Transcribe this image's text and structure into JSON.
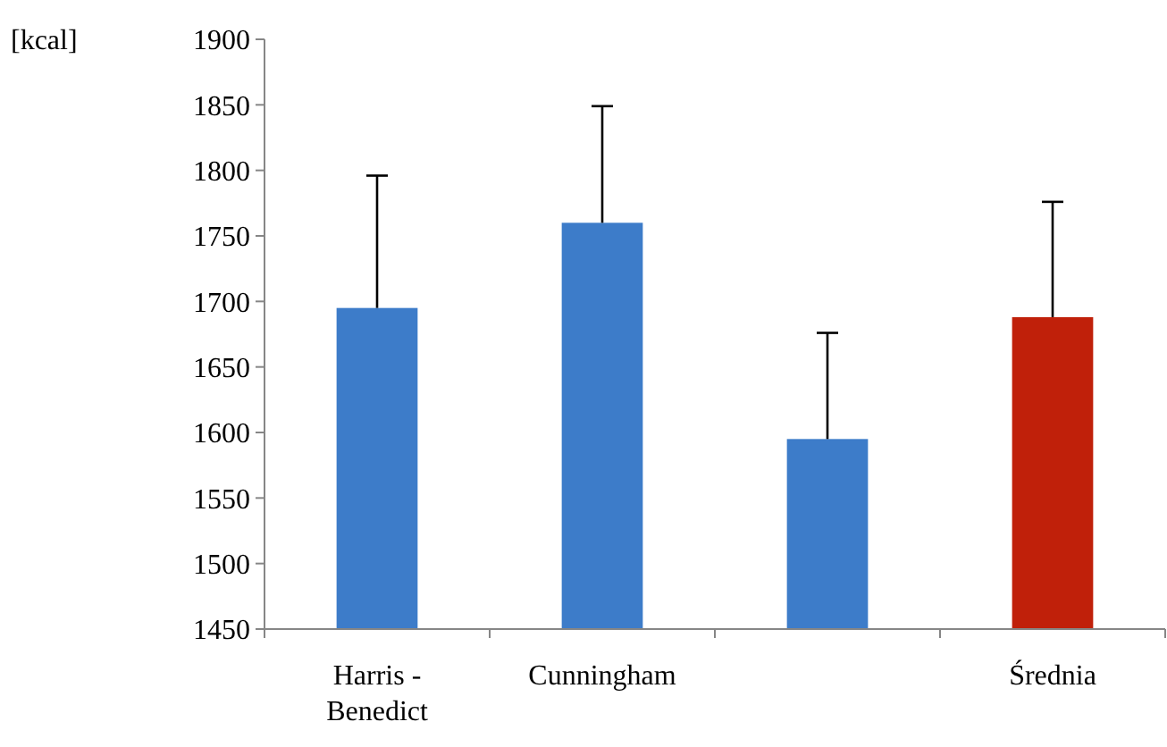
{
  "chart_data": {
    "type": "bar",
    "ylabel": "[kcal]",
    "categories": [
      "Harris - Benedict",
      "Cunningham",
      null,
      "Średnia"
    ],
    "values": [
      1695,
      1760,
      1595,
      1688
    ],
    "colors": [
      "#3d7cc9",
      "#3d7cc9",
      "#3d7cc9",
      "#c0200a"
    ],
    "errors": [
      [
        1695,
        1796
      ],
      [
        1760,
        1849
      ],
      [
        1595,
        1676
      ],
      [
        1688,
        1776
      ]
    ],
    "ylim": [
      1450,
      1900
    ],
    "yticks": [
      1450,
      1500,
      1550,
      1600,
      1650,
      1700,
      1750,
      1800,
      1850,
      1900
    ],
    "grid": false
  }
}
